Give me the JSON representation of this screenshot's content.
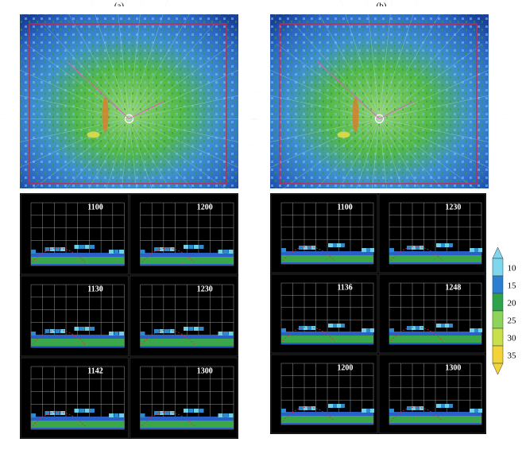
{
  "panels": {
    "a": {
      "label": "(a)",
      "times": [
        "1100",
        "1200",
        "1130",
        "1230",
        "1142",
        "1300"
      ]
    },
    "b": {
      "label": "(b)",
      "times": [
        "1100",
        "1230",
        "1136",
        "1248",
        "1200",
        "1300"
      ]
    }
  },
  "colorbar": {
    "ticks": [
      10,
      15,
      20,
      25,
      30,
      35
    ]
  }
}
